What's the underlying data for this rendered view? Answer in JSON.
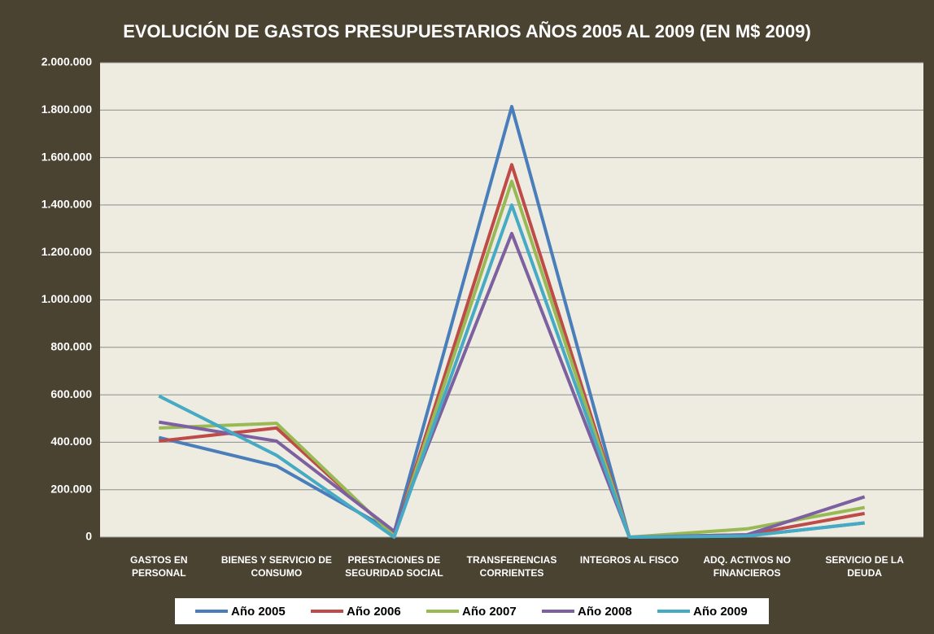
{
  "chart_data": {
    "type": "line",
    "title": "EVOLUCIÓN DE GASTOS PRESUPUESTARIOS AÑOS 2005 AL 2009 (EN M$ 2009)",
    "categories": [
      "GASTOS EN PERSONAL",
      "BIENES Y SERVICIO DE CONSUMO",
      "PRESTACIONES DE SEGURIDAD SOCIAL",
      "TRANSFERENCIAS CORRIENTES",
      "INTEGROS AL FISCO",
      "ADQ. ACTIVOS NO FINANCIEROS",
      "SERVICIO DE LA DEUDA"
    ],
    "series": [
      {
        "name": "Año 2005",
        "color": "#4a7ebb",
        "values": [
          420000,
          300000,
          20000,
          1815000,
          0,
          5000,
          60000
        ]
      },
      {
        "name": "Año 2006",
        "color": "#be4b48",
        "values": [
          405000,
          460000,
          10000,
          1570000,
          0,
          10000,
          100000
        ]
      },
      {
        "name": "Año 2007",
        "color": "#98b954",
        "values": [
          460000,
          480000,
          5000,
          1500000,
          0,
          35000,
          125000
        ]
      },
      {
        "name": "Año 2008",
        "color": "#7d60a0",
        "values": [
          485000,
          405000,
          25000,
          1280000,
          0,
          10000,
          170000
        ]
      },
      {
        "name": "Año 2009",
        "color": "#46aac5",
        "values": [
          595000,
          345000,
          0,
          1400000,
          0,
          5000,
          60000
        ]
      }
    ],
    "ylim": [
      0,
      2000000
    ],
    "yticks": [
      0,
      {
        "value": 200000,
        "label": "200.000"
      },
      {
        "value": 400000,
        "label": "400.000"
      },
      {
        "value": 600000,
        "label": "600.000"
      },
      {
        "value": 800000,
        "label": "800.000"
      },
      {
        "value": 1000000,
        "label": "1.000.000"
      },
      {
        "value": 1200000,
        "label": "1.200.000"
      },
      {
        "value": 1400000,
        "label": "1.400.000"
      },
      {
        "value": 1600000,
        "label": "1.600.000"
      },
      {
        "value": 1800000,
        "label": "1.800.000"
      },
      {
        "value": 2000000,
        "label": "2.000.000"
      }
    ],
    "grid": true
  }
}
